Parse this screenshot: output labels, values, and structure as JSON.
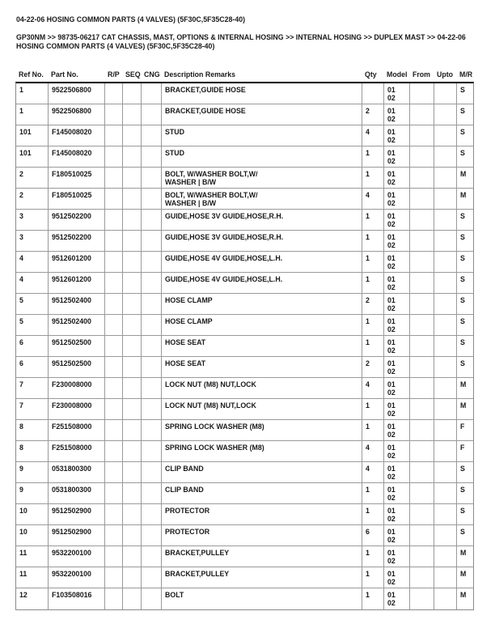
{
  "header": {
    "title": "04-22-06 HOSING COMMON PARTS (4 VALVES) (5F30C,5F35C28-40)",
    "breadcrumb_line1": "GP30NM >> 98735-06217 CAT CHASSIS, MAST, OPTIONS & INTERNAL HOSING >> INTERNAL HOSING >> DUPLEX MAST >> 04-22-06",
    "breadcrumb_line2": "HOSING COMMON PARTS (4 VALVES) (5F30C,5F35C28-40)"
  },
  "table": {
    "columns": [
      "Ref No.",
      "Part No.",
      "R/P",
      "SEQ",
      "CNG",
      "Description Remarks",
      "Qty",
      "Model",
      "From",
      "Upto",
      "M/R"
    ],
    "rows": [
      {
        "ref": "1",
        "part": "9522506800",
        "rp": "",
        "seq": "",
        "cng": "",
        "desc": [
          "BRACKET,GUIDE HOSE"
        ],
        "qty": "",
        "model": [
          "01",
          "02"
        ],
        "from": "",
        "upto": "",
        "mr": "S"
      },
      {
        "ref": "1",
        "part": "9522506800",
        "rp": "",
        "seq": "",
        "cng": "",
        "desc": [
          "BRACKET,GUIDE HOSE"
        ],
        "qty": "2",
        "model": [
          "01",
          "02"
        ],
        "from": "",
        "upto": "",
        "mr": "S"
      },
      {
        "ref": "101",
        "part": "F145008020",
        "rp": "",
        "seq": "",
        "cng": "",
        "desc": [
          "STUD"
        ],
        "qty": "4",
        "model": [
          "01",
          "02"
        ],
        "from": "",
        "upto": "",
        "mr": "S"
      },
      {
        "ref": "101",
        "part": "F145008020",
        "rp": "",
        "seq": "",
        "cng": "",
        "desc": [
          "STUD"
        ],
        "qty": "1",
        "model": [
          "01",
          "02"
        ],
        "from": "",
        "upto": "",
        "mr": "S"
      },
      {
        "ref": "2",
        "part": "F180510025",
        "rp": "",
        "seq": "",
        "cng": "",
        "desc": [
          "BOLT, W/WASHER BOLT,W/",
          "WASHER | B/W"
        ],
        "qty": "1",
        "model": [
          "01",
          "02"
        ],
        "from": "",
        "upto": "",
        "mr": "M"
      },
      {
        "ref": "2",
        "part": "F180510025",
        "rp": "",
        "seq": "",
        "cng": "",
        "desc": [
          "BOLT, W/WASHER BOLT,W/",
          "WASHER | B/W"
        ],
        "qty": "4",
        "model": [
          "01",
          "02"
        ],
        "from": "",
        "upto": "",
        "mr": "M"
      },
      {
        "ref": "3",
        "part": "9512502200",
        "rp": "",
        "seq": "",
        "cng": "",
        "desc": [
          "GUIDE,HOSE 3V GUIDE,HOSE,R.H."
        ],
        "qty": "1",
        "model": [
          "01",
          "02"
        ],
        "from": "",
        "upto": "",
        "mr": "S"
      },
      {
        "ref": "3",
        "part": "9512502200",
        "rp": "",
        "seq": "",
        "cng": "",
        "desc": [
          "GUIDE,HOSE 3V GUIDE,HOSE,R.H."
        ],
        "qty": "1",
        "model": [
          "01",
          "02"
        ],
        "from": "",
        "upto": "",
        "mr": "S"
      },
      {
        "ref": "4",
        "part": "9512601200",
        "rp": "",
        "seq": "",
        "cng": "",
        "desc": [
          "GUIDE,HOSE 4V GUIDE,HOSE,L.H."
        ],
        "qty": "1",
        "model": [
          "01",
          "02"
        ],
        "from": "",
        "upto": "",
        "mr": "S"
      },
      {
        "ref": "4",
        "part": "9512601200",
        "rp": "",
        "seq": "",
        "cng": "",
        "desc": [
          "GUIDE,HOSE 4V GUIDE,HOSE,L.H."
        ],
        "qty": "1",
        "model": [
          "01",
          "02"
        ],
        "from": "",
        "upto": "",
        "mr": "S"
      },
      {
        "ref": "5",
        "part": "9512502400",
        "rp": "",
        "seq": "",
        "cng": "",
        "desc": [
          "HOSE CLAMP"
        ],
        "qty": "2",
        "model": [
          "01",
          "02"
        ],
        "from": "",
        "upto": "",
        "mr": "S"
      },
      {
        "ref": "5",
        "part": "9512502400",
        "rp": "",
        "seq": "",
        "cng": "",
        "desc": [
          "HOSE CLAMP"
        ],
        "qty": "1",
        "model": [
          "01",
          "02"
        ],
        "from": "",
        "upto": "",
        "mr": "S"
      },
      {
        "ref": "6",
        "part": "9512502500",
        "rp": "",
        "seq": "",
        "cng": "",
        "desc": [
          "HOSE SEAT"
        ],
        "qty": "1",
        "model": [
          "01",
          "02"
        ],
        "from": "",
        "upto": "",
        "mr": "S"
      },
      {
        "ref": "6",
        "part": "9512502500",
        "rp": "",
        "seq": "",
        "cng": "",
        "desc": [
          "HOSE SEAT"
        ],
        "qty": "2",
        "model": [
          "01",
          "02"
        ],
        "from": "",
        "upto": "",
        "mr": "S"
      },
      {
        "ref": "7",
        "part": "F230008000",
        "rp": "",
        "seq": "",
        "cng": "",
        "desc": [
          "LOCK NUT (M8) NUT,LOCK"
        ],
        "qty": "4",
        "model": [
          "01",
          "02"
        ],
        "from": "",
        "upto": "",
        "mr": "M"
      },
      {
        "ref": "7",
        "part": "F230008000",
        "rp": "",
        "seq": "",
        "cng": "",
        "desc": [
          "LOCK NUT (M8) NUT,LOCK"
        ],
        "qty": "1",
        "model": [
          "01",
          "02"
        ],
        "from": "",
        "upto": "",
        "mr": "M"
      },
      {
        "ref": "8",
        "part": "F251508000",
        "rp": "",
        "seq": "",
        "cng": "",
        "desc": [
          "SPRING LOCK WASHER (M8)"
        ],
        "qty": "1",
        "model": [
          "01",
          "02"
        ],
        "from": "",
        "upto": "",
        "mr": "F"
      },
      {
        "ref": "8",
        "part": "F251508000",
        "rp": "",
        "seq": "",
        "cng": "",
        "desc": [
          "SPRING LOCK WASHER (M8)"
        ],
        "qty": "4",
        "model": [
          "01",
          "02"
        ],
        "from": "",
        "upto": "",
        "mr": "F"
      },
      {
        "ref": "9",
        "part": "0531800300",
        "rp": "",
        "seq": "",
        "cng": "",
        "desc": [
          "CLIP BAND"
        ],
        "qty": "4",
        "model": [
          "01",
          "02"
        ],
        "from": "",
        "upto": "",
        "mr": "S"
      },
      {
        "ref": "9",
        "part": "0531800300",
        "rp": "",
        "seq": "",
        "cng": "",
        "desc": [
          "CLIP BAND"
        ],
        "qty": "1",
        "model": [
          "01",
          "02"
        ],
        "from": "",
        "upto": "",
        "mr": "S"
      },
      {
        "ref": "10",
        "part": "9512502900",
        "rp": "",
        "seq": "",
        "cng": "",
        "desc": [
          "PROTECTOR"
        ],
        "qty": "1",
        "model": [
          "01",
          "02"
        ],
        "from": "",
        "upto": "",
        "mr": "S"
      },
      {
        "ref": "10",
        "part": "9512502900",
        "rp": "",
        "seq": "",
        "cng": "",
        "desc": [
          "PROTECTOR"
        ],
        "qty": "6",
        "model": [
          "01",
          "02"
        ],
        "from": "",
        "upto": "",
        "mr": "S"
      },
      {
        "ref": "11",
        "part": "9532200100",
        "rp": "",
        "seq": "",
        "cng": "",
        "desc": [
          "BRACKET,PULLEY"
        ],
        "qty": "1",
        "model": [
          "01",
          "02"
        ],
        "from": "",
        "upto": "",
        "mr": "M"
      },
      {
        "ref": "11",
        "part": "9532200100",
        "rp": "",
        "seq": "",
        "cng": "",
        "desc": [
          "BRACKET,PULLEY"
        ],
        "qty": "1",
        "model": [
          "01",
          "02"
        ],
        "from": "",
        "upto": "",
        "mr": "M"
      },
      {
        "ref": "12",
        "part": "F103508016",
        "rp": "",
        "seq": "",
        "cng": "",
        "desc": [
          "BOLT"
        ],
        "qty": "1",
        "model": [
          "01",
          "02"
        ],
        "from": "",
        "upto": "",
        "mr": "M"
      }
    ]
  }
}
